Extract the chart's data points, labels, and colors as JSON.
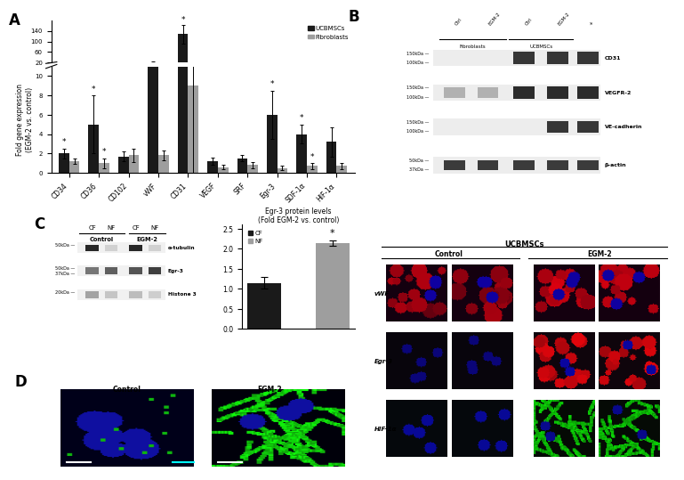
{
  "panel_A": {
    "categories": [
      "CD34",
      "CD36",
      "CD102",
      "vWF",
      "CD31",
      "VEGF",
      "SRF",
      "Egr-3",
      "SDF-1α",
      "HIF-1α"
    ],
    "ucbmscs": [
      2.0,
      5.0,
      1.7,
      20.0,
      128.0,
      1.2,
      1.5,
      6.0,
      4.0,
      3.2
    ],
    "fibroblasts": [
      1.2,
      1.0,
      1.8,
      1.8,
      9.0,
      0.6,
      0.8,
      0.5,
      0.7,
      0.7
    ],
    "ucbmscs_err": [
      0.5,
      3.0,
      0.5,
      5.0,
      35.0,
      0.4,
      0.3,
      2.5,
      1.0,
      1.5
    ],
    "fibroblasts_err": [
      0.3,
      0.5,
      0.7,
      0.5,
      10.0,
      0.2,
      0.3,
      0.2,
      0.3,
      0.3
    ],
    "significant_ucbmscs": [
      true,
      true,
      false,
      false,
      true,
      false,
      false,
      true,
      true,
      false
    ],
    "significant_fibro": [
      false,
      true,
      false,
      false,
      false,
      false,
      false,
      false,
      true,
      false
    ],
    "ylabel": "Fold gene expression\n(EGM-2 vs. control)",
    "ucbmscs_color": "#1a1a1a",
    "fibroblasts_color": "#9e9e9e",
    "bar_width": 0.35
  },
  "panel_C_bar": {
    "categories": [
      "CF",
      "NF"
    ],
    "values": [
      1.15,
      2.15
    ],
    "errors": [
      0.15,
      0.07
    ],
    "colors": [
      "#1a1a1a",
      "#9e9e9e"
    ],
    "title": "Egr-3 protein levels\n(Fold EGM-2 vs. control)",
    "ylim": [
      0,
      2.5
    ]
  },
  "background_color": "#ffffff",
  "panel_label_fontsize": 12
}
